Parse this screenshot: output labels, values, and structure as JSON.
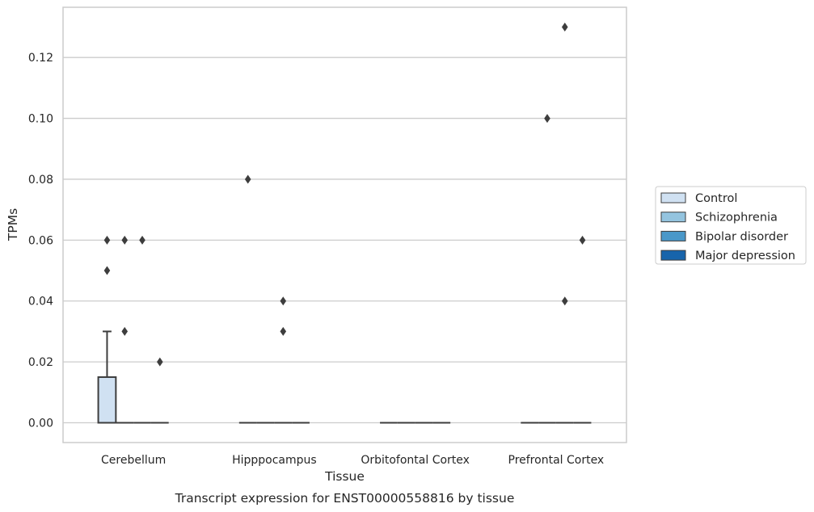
{
  "chart_data": {
    "type": "box",
    "title": "",
    "caption": "Transcript expression for ENST00000558816 by tissue",
    "xlabel": "Tissue",
    "ylabel": "TPMs",
    "ylim": [
      -0.0065,
      0.1365
    ],
    "yticks": [
      "0.00",
      "0.02",
      "0.04",
      "0.06",
      "0.08",
      "0.10",
      "0.12"
    ],
    "categories": [
      "Cerebellum",
      "Hipppocampus",
      "Orbitofontal Cortex",
      "Prefrontal Cortex"
    ],
    "grid": true,
    "legend_position": "right",
    "series": [
      {
        "name": "Control",
        "color": "#d0e1f2",
        "boxes": [
          {
            "q1": 0,
            "median": 0,
            "q3": 0.015,
            "whisker_low": 0,
            "whisker_high": 0.03,
            "outliers": [
              0.05,
              0.06
            ]
          },
          {
            "q1": 0,
            "median": 0,
            "q3": 0,
            "whisker_low": 0,
            "whisker_high": 0,
            "outliers": [
              0.08
            ]
          },
          {
            "q1": 0,
            "median": 0,
            "q3": 0,
            "whisker_low": 0,
            "whisker_high": 0,
            "outliers": []
          },
          {
            "q1": 0,
            "median": 0,
            "q3": 0,
            "whisker_low": 0,
            "whisker_high": 0,
            "outliers": []
          }
        ]
      },
      {
        "name": "Schizophrenia",
        "color": "#94c4df",
        "boxes": [
          {
            "q1": 0,
            "median": 0,
            "q3": 0,
            "whisker_low": 0,
            "whisker_high": 0,
            "outliers": [
              0.03,
              0.06
            ]
          },
          {
            "q1": 0,
            "median": 0,
            "q3": 0,
            "whisker_low": 0,
            "whisker_high": 0,
            "outliers": []
          },
          {
            "q1": 0,
            "median": 0,
            "q3": 0,
            "whisker_low": 0,
            "whisker_high": 0,
            "outliers": []
          },
          {
            "q1": 0,
            "median": 0,
            "q3": 0,
            "whisker_low": 0,
            "whisker_high": 0,
            "outliers": [
              0.1
            ]
          }
        ]
      },
      {
        "name": "Bipolar disorder",
        "color": "#4a98c9",
        "boxes": [
          {
            "q1": 0,
            "median": 0,
            "q3": 0,
            "whisker_low": 0,
            "whisker_high": 0,
            "outliers": [
              0.06
            ]
          },
          {
            "q1": 0,
            "median": 0,
            "q3": 0,
            "whisker_low": 0,
            "whisker_high": 0,
            "outliers": [
              0.03,
              0.04
            ]
          },
          {
            "q1": 0,
            "median": 0,
            "q3": 0,
            "whisker_low": 0,
            "whisker_high": 0,
            "outliers": []
          },
          {
            "q1": 0,
            "median": 0,
            "q3": 0,
            "whisker_low": 0,
            "whisker_high": 0,
            "outliers": [
              0.04,
              0.13
            ]
          }
        ]
      },
      {
        "name": "Major depression",
        "color": "#1764ab",
        "boxes": [
          {
            "q1": 0,
            "median": 0,
            "q3": 0,
            "whisker_low": 0,
            "whisker_high": 0,
            "outliers": [
              0.02
            ]
          },
          {
            "q1": 0,
            "median": 0,
            "q3": 0,
            "whisker_low": 0,
            "whisker_high": 0,
            "outliers": []
          },
          {
            "q1": 0,
            "median": 0,
            "q3": 0,
            "whisker_low": 0,
            "whisker_high": 0,
            "outliers": []
          },
          {
            "q1": 0,
            "median": 0,
            "q3": 0,
            "whisker_low": 0,
            "whisker_high": 0,
            "outliers": [
              0.06
            ]
          }
        ]
      }
    ]
  }
}
